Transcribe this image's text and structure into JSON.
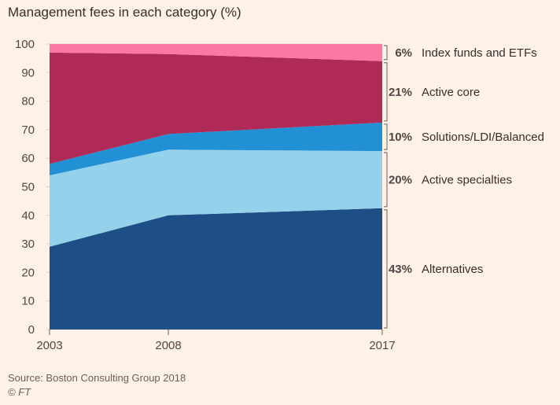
{
  "title": "Management fees in each category (%)",
  "source": "Source: Boston Consulting Group 2018",
  "credit": "© FT",
  "chart_data": {
    "type": "area",
    "stacked": true,
    "x": [
      "2003",
      "2008",
      "2017"
    ],
    "ylim": [
      0,
      100
    ],
    "yticks": [
      0,
      10,
      20,
      30,
      40,
      50,
      60,
      70,
      80,
      90,
      100
    ],
    "grid": true,
    "legend_position": "right",
    "series": [
      {
        "name": "Alternatives",
        "values": [
          29,
          40,
          42.5
        ],
        "color": "#1d4f86",
        "label_pct": "43%"
      },
      {
        "name": "Active specialties",
        "values": [
          25,
          23,
          20
        ],
        "color": "#93d2ea",
        "label_pct": "20%"
      },
      {
        "name": "Solutions/LDI/Balanced",
        "values": [
          4,
          5.5,
          10
        ],
        "color": "#2290d5",
        "label_pct": "10%"
      },
      {
        "name": "Active core",
        "values": [
          39,
          28,
          21.5
        ],
        "color": "#b02a58",
        "label_pct": "21%"
      },
      {
        "name": "Index funds and ETFs",
        "values": [
          3,
          3.5,
          6
        ],
        "color": "#fb77a4",
        "label_pct": "6%"
      }
    ]
  }
}
